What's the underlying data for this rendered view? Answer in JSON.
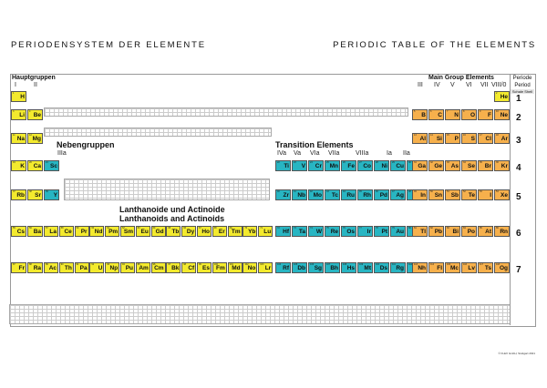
{
  "titles": {
    "de": "PERIODENSYSTEM DER ELEMENTE",
    "en": "PERIODIC TABLE OF THE ELEMENTS"
  },
  "groups": {
    "main_de": "Hauptgruppen",
    "main_en": "Main Group Elements",
    "sub_de": "Nebengruppen",
    "transition_en": "Transition Elements",
    "lan_act_de": "Lanthanoide und Actinoide",
    "lan_act_en": "Lanthanoids and Actinoids",
    "numerals_left": [
      "I",
      "II"
    ],
    "numerals_right": [
      "III",
      "IV",
      "V",
      "VI",
      "VII",
      "VIII/0"
    ],
    "subnumerals_left": [
      "IIIa"
    ],
    "subnumerals_right": [
      "IVa",
      "Va",
      "VIa",
      "VIIa",
      "VIIIa",
      "Ia",
      "IIa"
    ]
  },
  "period_header": {
    "de": "Periode",
    "en": "Period",
    "shell": "Schale Shell"
  },
  "periods": [
    "1",
    "2",
    "3",
    "4",
    "5",
    "6",
    "7"
  ],
  "copyright": "© FLEX GmbH, Stuttgart 2021",
  "colors": {
    "main_group": "#f3ea2e",
    "nonmetal_group": "#f6b04c",
    "transition": "#28b5c2"
  },
  "elements": [
    {
      "n": "1",
      "s": "H",
      "c": "y",
      "col": 0,
      "row": 0
    },
    {
      "n": "2",
      "s": "He",
      "c": "y",
      "col": 17,
      "row": 0
    },
    {
      "n": "3",
      "s": "Li",
      "c": "y",
      "col": 0,
      "row": 1
    },
    {
      "n": "4",
      "s": "Be",
      "c": "y",
      "col": 1,
      "row": 1
    },
    {
      "n": "5",
      "s": "B",
      "c": "o",
      "col": 12,
      "row": 1
    },
    {
      "n": "6",
      "s": "C",
      "c": "o",
      "col": 13,
      "row": 1
    },
    {
      "n": "7",
      "s": "N",
      "c": "o",
      "col": 14,
      "row": 1
    },
    {
      "n": "8",
      "s": "O",
      "c": "o",
      "col": 15,
      "row": 1
    },
    {
      "n": "9",
      "s": "F",
      "c": "o",
      "col": 16,
      "row": 1
    },
    {
      "n": "10",
      "s": "Ne",
      "c": "o",
      "col": 17,
      "row": 1
    },
    {
      "n": "11",
      "s": "Na",
      "c": "y",
      "col": 0,
      "row": 2
    },
    {
      "n": "12",
      "s": "Mg",
      "c": "y",
      "col": 1,
      "row": 2
    },
    {
      "n": "13",
      "s": "Al",
      "c": "o",
      "col": 12,
      "row": 2
    },
    {
      "n": "14",
      "s": "Si",
      "c": "o",
      "col": 13,
      "row": 2
    },
    {
      "n": "15",
      "s": "P",
      "c": "o",
      "col": 14,
      "row": 2
    },
    {
      "n": "16",
      "s": "S",
      "c": "o",
      "col": 15,
      "row": 2
    },
    {
      "n": "17",
      "s": "Cl",
      "c": "o",
      "col": 16,
      "row": 2
    },
    {
      "n": "18",
      "s": "Ar",
      "c": "o",
      "col": 17,
      "row": 2
    },
    {
      "n": "19",
      "s": "K",
      "c": "y",
      "col": 0,
      "row": 3
    },
    {
      "n": "20",
      "s": "Ca",
      "c": "y",
      "col": 1,
      "row": 3
    },
    {
      "n": "21",
      "s": "Sc",
      "c": "t",
      "col": 2,
      "row": 3
    },
    {
      "n": "22",
      "s": "Ti",
      "c": "t",
      "col": 3,
      "row": 3
    },
    {
      "n": "23",
      "s": "V",
      "c": "t",
      "col": 4,
      "row": 3
    },
    {
      "n": "24",
      "s": "Cr",
      "c": "t",
      "col": 5,
      "row": 3
    },
    {
      "n": "25",
      "s": "Mn",
      "c": "t",
      "col": 6,
      "row": 3
    },
    {
      "n": "26",
      "s": "Fe",
      "c": "t",
      "col": 7,
      "row": 3
    },
    {
      "n": "27",
      "s": "Co",
      "c": "t",
      "col": 8,
      "row": 3
    },
    {
      "n": "28",
      "s": "Ni",
      "c": "t",
      "col": 9,
      "row": 3
    },
    {
      "n": "29",
      "s": "Cu",
      "c": "t",
      "col": 10,
      "row": 3
    },
    {
      "n": "30",
      "s": "Zn",
      "c": "t",
      "col": 11,
      "row": 3
    },
    {
      "n": "31",
      "s": "Ga",
      "c": "o",
      "col": 12,
      "row": 3
    },
    {
      "n": "32",
      "s": "Ge",
      "c": "o",
      "col": 13,
      "row": 3
    },
    {
      "n": "33",
      "s": "As",
      "c": "o",
      "col": 14,
      "row": 3
    },
    {
      "n": "34",
      "s": "Se",
      "c": "o",
      "col": 15,
      "row": 3
    },
    {
      "n": "35",
      "s": "Br",
      "c": "o",
      "col": 16,
      "row": 3
    },
    {
      "n": "36",
      "s": "Kr",
      "c": "o",
      "col": 17,
      "row": 3
    },
    {
      "n": "37",
      "s": "Rb",
      "c": "y",
      "col": 0,
      "row": 4
    },
    {
      "n": "38",
      "s": "Sr",
      "c": "y",
      "col": 1,
      "row": 4
    },
    {
      "n": "39",
      "s": "Y",
      "c": "t",
      "col": 2,
      "row": 4
    },
    {
      "n": "40",
      "s": "Zr",
      "c": "t",
      "col": 3,
      "row": 4
    },
    {
      "n": "41",
      "s": "Nb",
      "c": "t",
      "col": 4,
      "row": 4
    },
    {
      "n": "42",
      "s": "Mo",
      "c": "t",
      "col": 5,
      "row": 4
    },
    {
      "n": "43",
      "s": "Tc",
      "c": "t",
      "col": 6,
      "row": 4
    },
    {
      "n": "44",
      "s": "Ru",
      "c": "t",
      "col": 7,
      "row": 4
    },
    {
      "n": "45",
      "s": "Rh",
      "c": "t",
      "col": 8,
      "row": 4
    },
    {
      "n": "46",
      "s": "Pd",
      "c": "t",
      "col": 9,
      "row": 4
    },
    {
      "n": "47",
      "s": "Ag",
      "c": "t",
      "col": 10,
      "row": 4
    },
    {
      "n": "48",
      "s": "Cd",
      "c": "t",
      "col": 11,
      "row": 4
    },
    {
      "n": "49",
      "s": "In",
      "c": "o",
      "col": 12,
      "row": 4
    },
    {
      "n": "50",
      "s": "Sn",
      "c": "o",
      "col": 13,
      "row": 4
    },
    {
      "n": "51",
      "s": "Sb",
      "c": "o",
      "col": 14,
      "row": 4
    },
    {
      "n": "52",
      "s": "Te",
      "c": "o",
      "col": 15,
      "row": 4
    },
    {
      "n": "53",
      "s": "I",
      "c": "o",
      "col": 16,
      "row": 4
    },
    {
      "n": "54",
      "s": "Xe",
      "c": "o",
      "col": 17,
      "row": 4
    },
    {
      "n": "55",
      "s": "Cs",
      "c": "y",
      "col": 0,
      "row": 5
    },
    {
      "n": "56",
      "s": "Ba",
      "c": "y",
      "col": 1,
      "row": 5
    },
    {
      "n": "72",
      "s": "Hf",
      "c": "t",
      "col": 3,
      "row": 5
    },
    {
      "n": "73",
      "s": "Ta",
      "c": "t",
      "col": 4,
      "row": 5
    },
    {
      "n": "74",
      "s": "W",
      "c": "t",
      "col": 5,
      "row": 5
    },
    {
      "n": "75",
      "s": "Re",
      "c": "t",
      "col": 6,
      "row": 5
    },
    {
      "n": "76",
      "s": "Os",
      "c": "t",
      "col": 7,
      "row": 5
    },
    {
      "n": "77",
      "s": "Ir",
      "c": "t",
      "col": 8,
      "row": 5
    },
    {
      "n": "78",
      "s": "Pt",
      "c": "t",
      "col": 9,
      "row": 5
    },
    {
      "n": "79",
      "s": "Au",
      "c": "t",
      "col": 10,
      "row": 5
    },
    {
      "n": "80",
      "s": "Hg",
      "c": "t",
      "col": 11,
      "row": 5
    },
    {
      "n": "81",
      "s": "Tl",
      "c": "o",
      "col": 12,
      "row": 5
    },
    {
      "n": "82",
      "s": "Pb",
      "c": "o",
      "col": 13,
      "row": 5
    },
    {
      "n": "83",
      "s": "Bi",
      "c": "o",
      "col": 14,
      "row": 5
    },
    {
      "n": "84",
      "s": "Po",
      "c": "o",
      "col": 15,
      "row": 5
    },
    {
      "n": "85",
      "s": "At",
      "c": "o",
      "col": 16,
      "row": 5
    },
    {
      "n": "86",
      "s": "Rn",
      "c": "o",
      "col": 17,
      "row": 5
    },
    {
      "n": "87",
      "s": "Fr",
      "c": "y",
      "col": 0,
      "row": 6
    },
    {
      "n": "88",
      "s": "Ra",
      "c": "y",
      "col": 1,
      "row": 6
    },
    {
      "n": "104",
      "s": "Rf",
      "c": "t",
      "col": 3,
      "row": 6
    },
    {
      "n": "105",
      "s": "Db",
      "c": "t",
      "col": 4,
      "row": 6
    },
    {
      "n": "106",
      "s": "Sg",
      "c": "t",
      "col": 5,
      "row": 6
    },
    {
      "n": "107",
      "s": "Bh",
      "c": "t",
      "col": 6,
      "row": 6
    },
    {
      "n": "108",
      "s": "Hs",
      "c": "t",
      "col": 7,
      "row": 6
    },
    {
      "n": "109",
      "s": "Mt",
      "c": "t",
      "col": 8,
      "row": 6
    },
    {
      "n": "110",
      "s": "Ds",
      "c": "t",
      "col": 9,
      "row": 6
    },
    {
      "n": "111",
      "s": "Rg",
      "c": "t",
      "col": 10,
      "row": 6
    },
    {
      "n": "112",
      "s": "Cn",
      "c": "t",
      "col": 11,
      "row": 6
    },
    {
      "n": "113",
      "s": "Nh",
      "c": "o",
      "col": 12,
      "row": 6
    },
    {
      "n": "114",
      "s": "Fl",
      "c": "o",
      "col": 13,
      "row": 6
    },
    {
      "n": "115",
      "s": "Mc",
      "c": "o",
      "col": 14,
      "row": 6
    },
    {
      "n": "116",
      "s": "Lv",
      "c": "o",
      "col": 15,
      "row": 6
    },
    {
      "n": "117",
      "s": "Ts",
      "c": "o",
      "col": 16,
      "row": 6
    },
    {
      "n": "118",
      "s": "Og",
      "c": "o",
      "col": 17,
      "row": 6
    }
  ],
  "lanthanoids": [
    {
      "n": "57",
      "s": "La"
    },
    {
      "n": "58",
      "s": "Ce"
    },
    {
      "n": "59",
      "s": "Pr"
    },
    {
      "n": "60",
      "s": "Nd"
    },
    {
      "n": "61",
      "s": "Pm"
    },
    {
      "n": "62",
      "s": "Sm"
    },
    {
      "n": "63",
      "s": "Eu"
    },
    {
      "n": "64",
      "s": "Gd"
    },
    {
      "n": "65",
      "s": "Tb"
    },
    {
      "n": "66",
      "s": "Dy"
    },
    {
      "n": "67",
      "s": "Ho"
    },
    {
      "n": "68",
      "s": "Er"
    },
    {
      "n": "69",
      "s": "Tm"
    },
    {
      "n": "70",
      "s": "Yb"
    },
    {
      "n": "71",
      "s": "Lu"
    }
  ],
  "actinoids": [
    {
      "n": "89",
      "s": "Ac"
    },
    {
      "n": "90",
      "s": "Th"
    },
    {
      "n": "91",
      "s": "Pa"
    },
    {
      "n": "92",
      "s": "U"
    },
    {
      "n": "93",
      "s": "Np"
    },
    {
      "n": "94",
      "s": "Pu"
    },
    {
      "n": "95",
      "s": "Am"
    },
    {
      "n": "96",
      "s": "Cm"
    },
    {
      "n": "97",
      "s": "Bk"
    },
    {
      "n": "98",
      "s": "Cf"
    },
    {
      "n": "99",
      "s": "Es"
    },
    {
      "n": "100",
      "s": "Fm"
    },
    {
      "n": "101",
      "s": "Md"
    },
    {
      "n": "102",
      "s": "No"
    },
    {
      "n": "103",
      "s": "Lr"
    }
  ]
}
